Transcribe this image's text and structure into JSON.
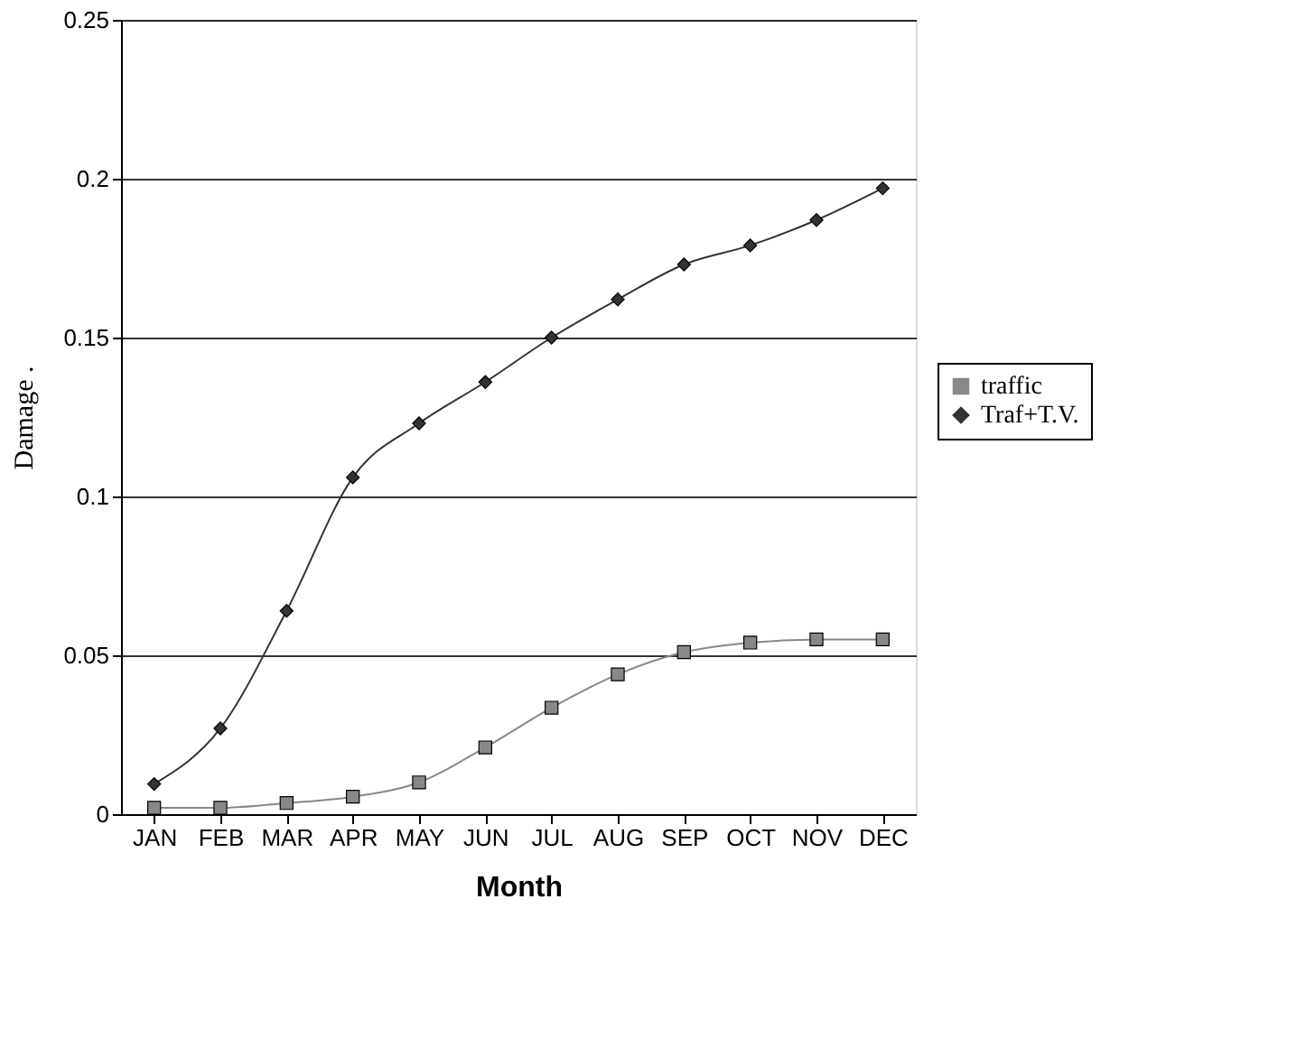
{
  "chart_data": {
    "type": "line",
    "xlabel": "Month",
    "ylabel": "Damage .",
    "categories": [
      "JAN",
      "FEB",
      "MAR",
      "APR",
      "MAY",
      "JUN",
      "JUL",
      "AUG",
      "SEP",
      "OCT",
      "NOV",
      "DEC"
    ],
    "series": [
      {
        "name": "traffic",
        "color": "#888888",
        "marker": "square",
        "values": [
          0.002,
          0.002,
          0.0035,
          0.0055,
          0.01,
          0.021,
          0.0335,
          0.044,
          0.051,
          0.054,
          0.055,
          0.055
        ]
      },
      {
        "name": "Traf+T.V.",
        "color": "#333333",
        "marker": "diamond",
        "values": [
          0.0095,
          0.027,
          0.064,
          0.106,
          0.123,
          0.136,
          0.15,
          0.162,
          0.173,
          0.179,
          0.187,
          0.197
        ]
      }
    ],
    "ylim": [
      0,
      0.25
    ],
    "yticks": [
      0,
      0.05,
      0.1,
      0.15,
      0.2,
      0.25
    ],
    "grid": "y",
    "legend": "right",
    "line_style": "solid"
  }
}
